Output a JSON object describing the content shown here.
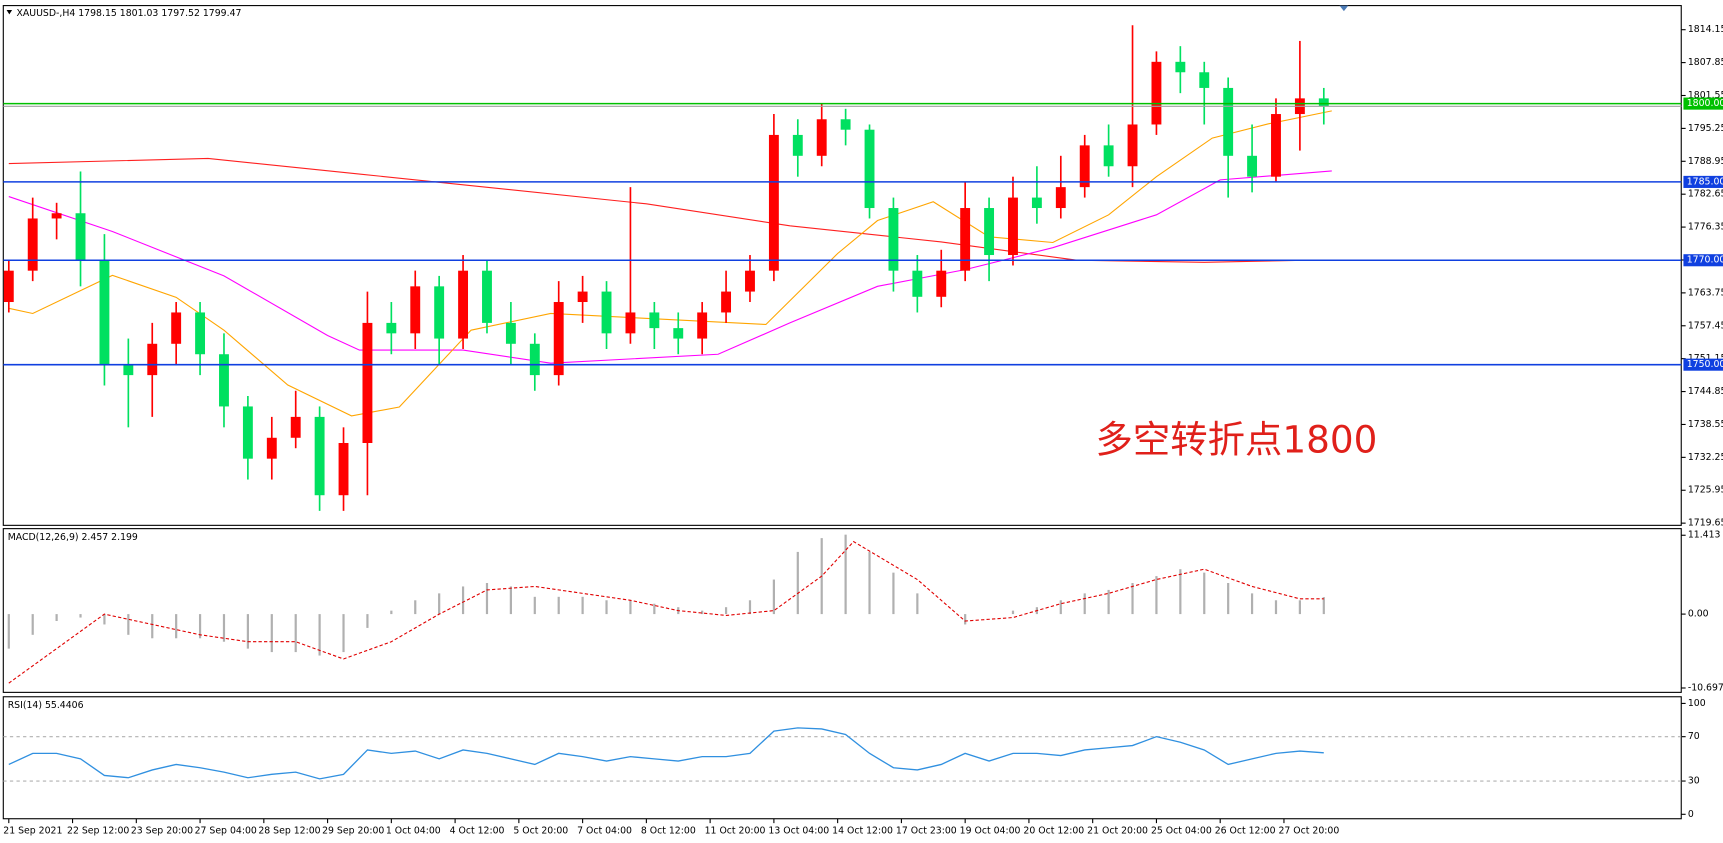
{
  "chart_data": [
    {
      "type": "candlestick",
      "header": "XAUUSD-,H4  1798.15 1801.03 1797.52 1799.47",
      "annotation": "多空转折点1800",
      "up_color": "#ff0000",
      "down_color": "#00e060",
      "x": [
        0,
        3,
        6,
        9,
        12,
        15,
        18,
        21,
        24,
        27,
        30,
        33,
        36,
        39,
        42,
        45,
        48,
        51,
        54,
        57,
        60,
        63,
        66,
        69,
        72,
        75,
        78,
        81,
        84,
        87,
        90,
        93,
        96,
        99,
        102,
        105,
        108,
        111,
        114,
        117,
        120,
        123,
        126,
        129,
        132,
        135,
        138,
        141,
        144,
        147,
        150,
        153,
        156,
        159,
        162,
        165
      ],
      "open": [
        1762,
        1768,
        1778,
        1779,
        1770,
        1750,
        1748,
        1754,
        1760,
        1752,
        1742,
        1732,
        1736,
        1740,
        1725,
        1735,
        1758,
        1756,
        1765,
        1755,
        1768,
        1758,
        1754,
        1748,
        1762,
        1764,
        1756,
        1760,
        1757,
        1755,
        1760,
        1764,
        1768,
        1794,
        1790,
        1797,
        1795,
        1780,
        1768,
        1763,
        1768,
        1780,
        1771,
        1782,
        1780,
        1784,
        1792,
        1788,
        1796,
        1808,
        1806,
        1803,
        1790,
        1786,
        1798,
        1801
      ],
      "high": [
        1770,
        1782,
        1781,
        1787,
        1775,
        1755,
        1758,
        1762,
        1762,
        1756,
        1744,
        1740,
        1745,
        1742,
        1738,
        1764,
        1762,
        1768,
        1767,
        1771,
        1770,
        1762,
        1756,
        1766,
        1767,
        1766,
        1784,
        1762,
        1760,
        1762,
        1768,
        1771,
        1798,
        1797,
        1800,
        1799,
        1796,
        1782,
        1771,
        1772,
        1785,
        1782,
        1786,
        1788,
        1790,
        1794,
        1796,
        1815,
        1810,
        1811,
        1808,
        1805,
        1796,
        1801,
        1812,
        1803
      ],
      "low": [
        1760,
        1766,
        1774,
        1765,
        1746,
        1738,
        1740,
        1750,
        1748,
        1738,
        1728,
        1728,
        1734,
        1722,
        1722,
        1725,
        1752,
        1753,
        1750,
        1753,
        1756,
        1750,
        1745,
        1746,
        1758,
        1753,
        1754,
        1753,
        1752,
        1752,
        1758,
        1762,
        1766,
        1786,
        1788,
        1792,
        1778,
        1764,
        1760,
        1761,
        1766,
        1766,
        1769,
        1777,
        1778,
        1782,
        1786,
        1784,
        1794,
        1802,
        1796,
        1782,
        1783,
        1785,
        1791,
        1796
      ],
      "close": [
        1768,
        1778,
        1779,
        1770,
        1750,
        1748,
        1754,
        1760,
        1752,
        1742,
        1732,
        1736,
        1740,
        1725,
        1735,
        1758,
        1756,
        1765,
        1755,
        1768,
        1758,
        1754,
        1748,
        1762,
        1764,
        1756,
        1760,
        1757,
        1755,
        1760,
        1764,
        1768,
        1794,
        1790,
        1797,
        1795,
        1780,
        1768,
        1763,
        1768,
        1780,
        1771,
        1782,
        1780,
        1784,
        1792,
        1788,
        1796,
        1808,
        1806,
        1803,
        1790,
        1786,
        1798,
        1801,
        1799.47
      ],
      "series": [
        {
          "color": "#ff2020",
          "x": [
            0,
            25,
            44,
            80,
            98,
            117,
            134,
            150,
            163
          ],
          "values": [
            1788.5,
            1789.5,
            1786.5,
            1780.8,
            1776.6,
            1773.5,
            1770.0,
            1769.6,
            1770.0
          ]
        },
        {
          "color": "#ff00ff",
          "x": [
            0,
            13,
            27,
            40,
            44,
            57,
            68,
            89,
            98,
            109,
            120,
            131,
            144,
            152,
            166
          ],
          "values": [
            1782.2,
            1775.5,
            1767,
            1755.6,
            1752.8,
            1752.8,
            1750.3,
            1752,
            1758,
            1765,
            1768.2,
            1772.4,
            1778.7,
            1785.4,
            1787.1
          ]
        },
        {
          "color": "#ffa500",
          "x": [
            0,
            3,
            13,
            21,
            27,
            35,
            43,
            49,
            58,
            68,
            82,
            95,
            104,
            109,
            116,
            123,
            131,
            138,
            144,
            151,
            158,
            166
          ],
          "values": [
            1760.8,
            1759.8,
            1767.1,
            1762.9,
            1756.6,
            1746.1,
            1740.2,
            1741.9,
            1756.6,
            1759.8,
            1758.7,
            1757.7,
            1771.3,
            1777.6,
            1781.2,
            1774.5,
            1773.4,
            1778.7,
            1786,
            1793.4,
            1796.1,
            1798.6
          ]
        }
      ],
      "levels": [
        {
          "value": 1800,
          "label": "1800.00",
          "color": "#00c000"
        },
        {
          "value": 1785,
          "label": "1785.00",
          "color": "#1040e0"
        },
        {
          "value": 1770,
          "label": "1770.00",
          "color": "#1040e0"
        },
        {
          "value": 1750,
          "label": "1750.00",
          "color": "#1040e0"
        }
      ],
      "ylim": [
        1719.23,
        1818.77
      ],
      "yticks": [
        1814.15,
        1807.85,
        1801.55,
        1795.25,
        1788.95,
        1782.65,
        1776.35,
        {
          "value": 1770.05,
          "label": "1770.05"
        },
        1763.75,
        1757.45,
        1751.15,
        1744.85,
        1738.55,
        1732.25,
        1725.95,
        1719.65
      ],
      "xlim": [
        -0.69,
        209.85
      ],
      "xticks": [
        {
          "value": 0,
          "label": "21 Sep 2021"
        },
        {
          "value": 8,
          "label": "22 Sep 12:00"
        },
        {
          "value": 16,
          "label": "23 Sep 20:00"
        },
        {
          "value": 24,
          "label": "27 Sep 04:00"
        },
        {
          "value": 32,
          "label": "28 Sep 12:00"
        },
        {
          "value": 40,
          "label": "29 Sep 20:00"
        },
        {
          "value": 48,
          "label": "1 Oct 04:00"
        },
        {
          "value": 56,
          "label": "4 Oct 12:00"
        },
        {
          "value": 64,
          "label": "5 Oct 20:00"
        },
        {
          "value": 72,
          "label": "7 Oct 04:00"
        },
        {
          "value": 80,
          "label": "8 Oct 12:00"
        },
        {
          "value": 88,
          "label": "11 Oct 20:00"
        },
        {
          "value": 96,
          "label": "13 Oct 04:00"
        },
        {
          "value": 104,
          "label": "14 Oct 12:00"
        },
        {
          "value": 112,
          "label": "17 Oct 23:00"
        },
        {
          "value": 120,
          "label": "19 Oct 04:00"
        },
        {
          "value": 128,
          "label": "20 Oct 12:00"
        },
        {
          "value": 136,
          "label": "21 Oct 20:00"
        },
        {
          "value": 144,
          "label": "25 Oct 04:00"
        },
        {
          "value": 152,
          "label": "26 Oct 12:00"
        },
        {
          "value": 160,
          "label": "27 Oct 20:00"
        }
      ]
    },
    {
      "type": "macd",
      "title": "MACD(12,26,9) 2.457 2.199",
      "x": [
        0,
        3,
        6,
        9,
        12,
        15,
        18,
        21,
        24,
        27,
        30,
        33,
        36,
        39,
        42,
        45,
        48,
        51,
        54,
        57,
        60,
        63,
        66,
        69,
        72,
        75,
        78,
        81,
        84,
        87,
        90,
        93,
        96,
        99,
        102,
        105,
        108,
        111,
        114,
        117,
        120,
        123,
        126,
        129,
        132,
        135,
        138,
        141,
        144,
        147,
        150,
        153,
        156,
        159,
        162,
        165
      ],
      "values": [
        -5,
        -3,
        -1,
        -0.5,
        -1.5,
        -3,
        -3.5,
        -3.5,
        -3.5,
        -4,
        -5,
        -5.5,
        -5.5,
        -6,
        -5.5,
        -2,
        0.5,
        2,
        3,
        4,
        4.5,
        4,
        2.5,
        2.5,
        2.5,
        2,
        2,
        1.5,
        1,
        0.5,
        1,
        2,
        5,
        9,
        11,
        11.5,
        9,
        6,
        3,
        0,
        -1.5,
        0,
        0.5,
        1,
        2,
        3,
        3.5,
        4.5,
        5.5,
        6.5,
        6,
        4.5,
        3,
        2,
        2,
        2.457
      ],
      "color": "#b0b0b0",
      "signal": {
        "color": "#e00000",
        "x": [
          0,
          6,
          12,
          18,
          24,
          30,
          36,
          42,
          48,
          54,
          60,
          66,
          72,
          78,
          84,
          90,
          96,
          102,
          106,
          114,
          120,
          126,
          132,
          138,
          144,
          150,
          156,
          162,
          165
        ],
        "values": [
          -10,
          -5,
          0,
          -1.5,
          -3,
          -4,
          -4,
          -6.5,
          -4,
          0,
          3.5,
          4,
          3,
          2,
          0.5,
          -0.2,
          0.5,
          5.5,
          10.5,
          5,
          -1,
          -0.5,
          1.5,
          3,
          5,
          6.5,
          4,
          2.2,
          2.199
        ]
      },
      "ylim": [
        -11.33,
        12.37
      ],
      "yticks": [
        11.413,
        {
          "value": 0,
          "label": "0.00"
        },
        -10.697
      ]
    },
    {
      "type": "line",
      "title": "RSI(14) 55.4406",
      "x": [
        0,
        3,
        6,
        9,
        12,
        15,
        18,
        21,
        24,
        27,
        30,
        33,
        36,
        39,
        42,
        45,
        48,
        51,
        54,
        57,
        60,
        63,
        66,
        69,
        72,
        75,
        78,
        81,
        84,
        87,
        90,
        93,
        96,
        99,
        102,
        105,
        108,
        111,
        114,
        117,
        120,
        123,
        126,
        129,
        132,
        135,
        138,
        141,
        144,
        147,
        150,
        153,
        156,
        159,
        162,
        165
      ],
      "values": [
        45,
        55,
        55,
        50,
        35,
        33,
        40,
        45,
        42,
        38,
        33,
        36,
        38,
        32,
        36,
        58,
        55,
        57,
        50,
        58,
        55,
        50,
        45,
        55,
        52,
        48,
        52,
        50,
        48,
        52,
        52,
        55,
        75,
        78,
        77,
        72,
        55,
        42,
        40,
        45,
        55,
        48,
        55,
        55,
        53,
        58,
        60,
        62,
        70,
        65,
        58,
        45,
        50,
        55,
        57,
        55.4406
      ],
      "color": "#3090e0",
      "levels": [
        70,
        30
      ],
      "ylim": [
        -4,
        106
      ],
      "yticks": [
        100,
        70,
        30,
        0
      ]
    }
  ]
}
